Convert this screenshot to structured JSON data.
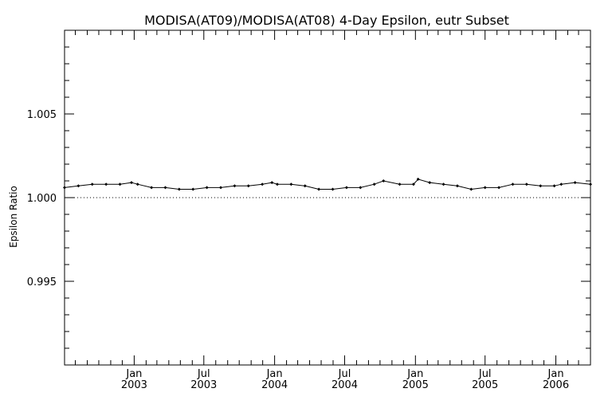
{
  "chart_data": {
    "type": "line",
    "title": "MODISA(AT09)/MODISA(AT08) 4-Day Epsilon, eutr Subset",
    "xlabel": "",
    "ylabel": "Epsilon Ratio",
    "xlim": [
      "2002-07-04",
      "2006-04-01"
    ],
    "ylim": [
      0.99,
      1.01
    ],
    "yticks": [
      {
        "value": 0.995,
        "label": "0.995"
      },
      {
        "value": 1.0,
        "label": "1.000"
      },
      {
        "value": 1.005,
        "label": "1.005"
      }
    ],
    "xticks": [
      {
        "date": "2003-01-01",
        "month": "Jan",
        "year": "2003"
      },
      {
        "date": "2003-07-01",
        "month": "Jul",
        "year": "2003"
      },
      {
        "date": "2004-01-01",
        "month": "Jan",
        "year": "2004"
      },
      {
        "date": "2004-07-01",
        "month": "Jul",
        "year": "2004"
      },
      {
        "date": "2005-01-01",
        "month": "Jan",
        "year": "2005"
      },
      {
        "date": "2005-07-01",
        "month": "Jul",
        "year": "2005"
      },
      {
        "date": "2006-01-01",
        "month": "Jan",
        "year": "2006"
      }
    ],
    "reference_line": 1.0,
    "grid": false,
    "series": [
      {
        "x": [
          "2002-07-04",
          "2002-08-09",
          "2002-09-14",
          "2002-10-20",
          "2002-11-25",
          "2002-12-25",
          "2003-01-10",
          "2003-02-15",
          "2003-03-23",
          "2003-04-28",
          "2003-06-03",
          "2003-07-09",
          "2003-08-14",
          "2003-09-19",
          "2003-10-25",
          "2003-11-30",
          "2003-12-25",
          "2004-01-08",
          "2004-02-13",
          "2004-03-20",
          "2004-04-25",
          "2004-05-31",
          "2004-07-06",
          "2004-08-11",
          "2004-09-16",
          "2004-10-10",
          "2004-11-21",
          "2004-12-27",
          "2005-01-08",
          "2005-02-07",
          "2005-03-15",
          "2005-04-20",
          "2005-05-26",
          "2005-07-01",
          "2005-08-06",
          "2005-09-11",
          "2005-10-17",
          "2005-11-22",
          "2005-12-28",
          "2006-01-15",
          "2006-02-20",
          "2006-04-01"
        ],
        "y": [
          1.0006,
          1.0007,
          1.0008,
          1.0008,
          1.0008,
          1.0009,
          1.0008,
          1.0006,
          1.0006,
          1.0005,
          1.0005,
          1.0006,
          1.0006,
          1.0007,
          1.0007,
          1.0008,
          1.0009,
          1.0008,
          1.0008,
          1.0007,
          1.0005,
          1.0005,
          1.0006,
          1.0006,
          1.0008,
          1.001,
          1.0008,
          1.0008,
          1.0011,
          1.0009,
          1.0008,
          1.0007,
          1.0005,
          1.0006,
          1.0006,
          1.0008,
          1.0008,
          1.0007,
          1.0007,
          1.0008,
          1.0009,
          1.0008
        ]
      }
    ]
  }
}
